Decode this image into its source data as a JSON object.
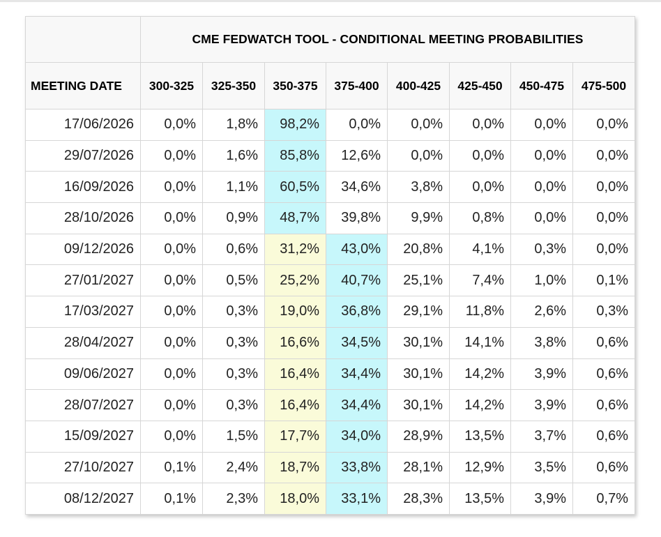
{
  "title": "CME FEDWATCH TOOL - CONDITIONAL MEETING PROBABILITIES",
  "colors": {
    "current_target_highlight": "#c7f7fb",
    "previous_target_highlight": "#fafbd9",
    "header_background": "#f8f8f8",
    "border": "#d6d6d6"
  },
  "chart_data": {
    "type": "table",
    "title": "CME FEDWATCH TOOL - CONDITIONAL MEETING PROBABILITIES",
    "row_header_label": "MEETING DATE",
    "columns": [
      "300-325",
      "325-350",
      "350-375",
      "375-400",
      "400-425",
      "425-450",
      "450-475",
      "475-500"
    ],
    "rows": [
      {
        "date": "17/06/2026",
        "values": [
          "0,0%",
          "1,8%",
          "98,2%",
          "0,0%",
          "0,0%",
          "0,0%",
          "0,0%",
          "0,0%"
        ],
        "highlight": {
          "cyan": 2
        }
      },
      {
        "date": "29/07/2026",
        "values": [
          "0,0%",
          "1,6%",
          "85,8%",
          "12,6%",
          "0,0%",
          "0,0%",
          "0,0%",
          "0,0%"
        ],
        "highlight": {
          "cyan": 2
        }
      },
      {
        "date": "16/09/2026",
        "values": [
          "0,0%",
          "1,1%",
          "60,5%",
          "34,6%",
          "3,8%",
          "0,0%",
          "0,0%",
          "0,0%"
        ],
        "highlight": {
          "cyan": 2
        }
      },
      {
        "date": "28/10/2026",
        "values": [
          "0,0%",
          "0,9%",
          "48,7%",
          "39,8%",
          "9,9%",
          "0,8%",
          "0,0%",
          "0,0%"
        ],
        "highlight": {
          "cyan": 2
        }
      },
      {
        "date": "09/12/2026",
        "values": [
          "0,0%",
          "0,6%",
          "31,2%",
          "43,0%",
          "20,8%",
          "4,1%",
          "0,3%",
          "0,0%"
        ],
        "highlight": {
          "yellow": 2,
          "cyan": 3
        }
      },
      {
        "date": "27/01/2027",
        "values": [
          "0,0%",
          "0,5%",
          "25,2%",
          "40,7%",
          "25,1%",
          "7,4%",
          "1,0%",
          "0,1%"
        ],
        "highlight": {
          "yellow": 2,
          "cyan": 3
        }
      },
      {
        "date": "17/03/2027",
        "values": [
          "0,0%",
          "0,3%",
          "19,0%",
          "36,8%",
          "29,1%",
          "11,8%",
          "2,6%",
          "0,3%"
        ],
        "highlight": {
          "yellow": 2,
          "cyan": 3
        }
      },
      {
        "date": "28/04/2027",
        "values": [
          "0,0%",
          "0,3%",
          "16,6%",
          "34,5%",
          "30,1%",
          "14,1%",
          "3,8%",
          "0,6%"
        ],
        "highlight": {
          "yellow": 2,
          "cyan": 3
        }
      },
      {
        "date": "09/06/2027",
        "values": [
          "0,0%",
          "0,3%",
          "16,4%",
          "34,4%",
          "30,1%",
          "14,2%",
          "3,9%",
          "0,6%"
        ],
        "highlight": {
          "yellow": 2,
          "cyan": 3
        }
      },
      {
        "date": "28/07/2027",
        "values": [
          "0,0%",
          "0,3%",
          "16,4%",
          "34,4%",
          "30,1%",
          "14,2%",
          "3,9%",
          "0,6%"
        ],
        "highlight": {
          "yellow": 2,
          "cyan": 3
        }
      },
      {
        "date": "15/09/2027",
        "values": [
          "0,0%",
          "1,5%",
          "17,7%",
          "34,0%",
          "28,9%",
          "13,5%",
          "3,7%",
          "0,6%"
        ],
        "highlight": {
          "yellow": 2,
          "cyan": 3
        }
      },
      {
        "date": "27/10/2027",
        "values": [
          "0,1%",
          "2,4%",
          "18,7%",
          "33,8%",
          "28,1%",
          "12,9%",
          "3,5%",
          "0,6%"
        ],
        "highlight": {
          "yellow": 2,
          "cyan": 3
        }
      },
      {
        "date": "08/12/2027",
        "values": [
          "0,1%",
          "2,3%",
          "18,0%",
          "33,1%",
          "28,3%",
          "13,5%",
          "3,9%",
          "0,7%"
        ],
        "highlight": {
          "yellow": 2,
          "cyan": 3
        }
      }
    ]
  }
}
